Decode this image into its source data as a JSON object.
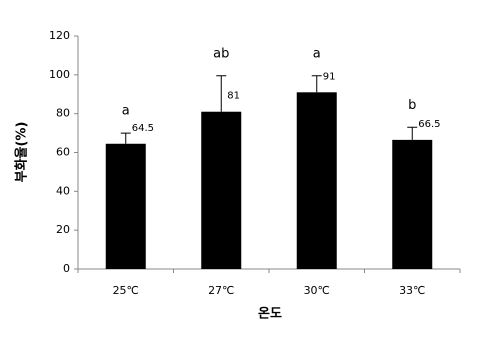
{
  "chart_data": {
    "type": "bar",
    "categories": [
      "25℃",
      "27℃",
      "30℃",
      "33℃"
    ],
    "values": [
      64.5,
      81,
      91,
      66.5
    ],
    "errors": [
      5.5,
      18.5,
      8.5,
      6.5
    ],
    "annotations": [
      "a",
      "ab",
      "a",
      "b"
    ],
    "color": "#000000",
    "ylim": [
      0,
      120
    ],
    "yticks": [
      0,
      20,
      40,
      60,
      80,
      100,
      120
    ],
    "y_label": "부화율(%)",
    "x_label": "온도",
    "grid": false
  }
}
